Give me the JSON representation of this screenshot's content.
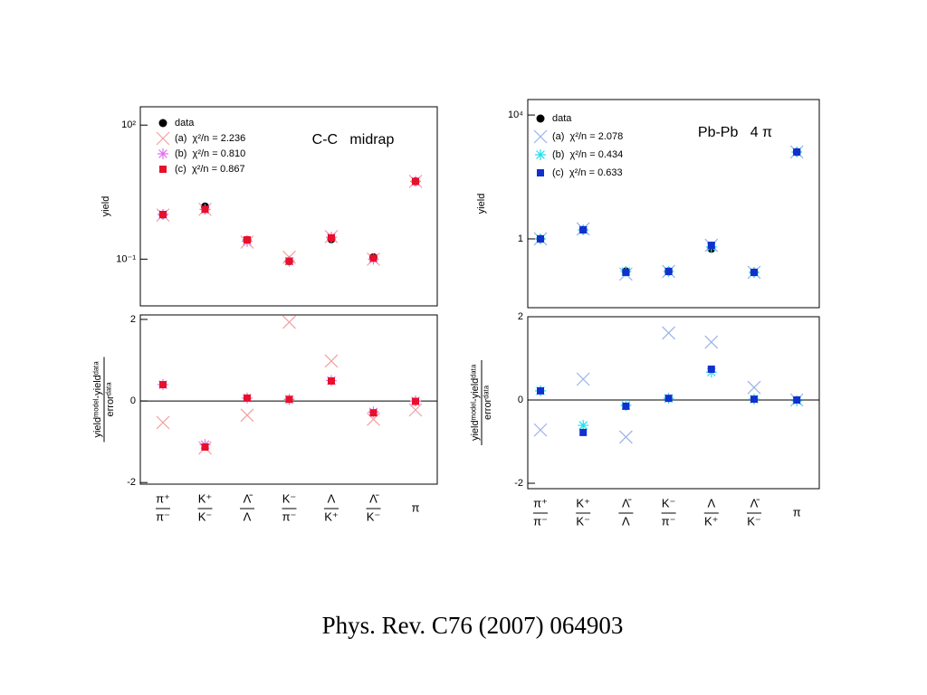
{
  "chart_data": [
    {
      "type": "scatter",
      "log_scale": true,
      "ylabel": "yield",
      "annotation": "C-C   midrap",
      "legend": "upper left",
      "ylim": [
        0.009,
        257
      ],
      "yticks": [
        {
          "value": 0.1,
          "label": "10⁻¹"
        },
        {
          "value": 100,
          "label": "10²"
        }
      ],
      "series": [
        {
          "name": "data",
          "marker": "circle",
          "color": "#000000",
          "values": [
            0.99,
            1.5,
            0.27,
            0.09,
            0.28,
            0.11,
            5.5
          ],
          "errors": [
            0.05,
            0.1,
            0.04,
            0.01,
            0.03,
            0.02,
            0.3
          ]
        },
        {
          "name": "(a)  χ²/n = 2.236",
          "marker": "x",
          "color": "#f4a0a0",
          "values": [
            0.97,
            1.3,
            0.24,
            0.11,
            0.32,
            0.1,
            5.5
          ]
        },
        {
          "name": "(b)  χ²/n = 0.810",
          "marker": "star",
          "color": "#e070f0",
          "values": [
            1.0,
            1.3,
            0.25,
            0.09,
            0.31,
            0.1,
            5.5
          ]
        },
        {
          "name": "(c)  χ²/n = 0.867",
          "marker": "square",
          "color": "#e8102a",
          "values": [
            1.0,
            1.3,
            0.27,
            0.09,
            0.3,
            0.105,
            5.5
          ]
        }
      ]
    },
    {
      "type": "scatter",
      "log_scale": true,
      "ylabel": "yield",
      "annotation": "Pb-Pb   4 π",
      "legend": "upper left",
      "ylim": [
        0.006,
        31600
      ],
      "yticks": [
        1,
        {
          "value": 10000,
          "label": "10⁴"
        }
      ],
      "series": [
        {
          "name": "data",
          "marker": "circle",
          "color": "#000000",
          "values": [
            1.0,
            1.96,
            0.089,
            0.089,
            0.48,
            0.083,
            640
          ],
          "errors": [
            0.04,
            0.1,
            0.005,
            0.005,
            0.04,
            0.005,
            30
          ]
        },
        {
          "name": "(a)  χ²/n = 2.078",
          "marker": "x",
          "color": "#9ab0e8",
          "values": [
            1.0,
            2.1,
            0.073,
            0.089,
            0.62,
            0.083,
            640
          ]
        },
        {
          "name": "(b)  χ²/n = 0.434",
          "marker": "star",
          "color": "#20e0f0",
          "values": [
            1.0,
            1.96,
            0.089,
            0.089,
            0.55,
            0.083,
            640
          ]
        },
        {
          "name": "(c)  χ²/n = 0.633",
          "marker": "square",
          "color": "#1030d0",
          "values": [
            1.0,
            1.96,
            0.083,
            0.089,
            0.62,
            0.083,
            640
          ]
        }
      ]
    },
    {
      "type": "scatter",
      "zero_line": true,
      "ylabel": {
        "numerator": "yieldᵐᵒᵈᵉˡ-yieldᵈᵃᵗᵃ",
        "denominator": "errorᵈᵃᵗᵃ"
      },
      "categories": [
        [
          "π⁺",
          "π⁻"
        ],
        [
          "K⁺",
          "K⁻"
        ],
        [
          "Λ̄",
          "Λ"
        ],
        [
          "K⁻",
          "π⁻"
        ],
        [
          "Λ",
          "K⁺"
        ],
        [
          "Λ̄",
          "K⁻"
        ],
        [
          "π"
        ]
      ],
      "ylim": [
        -2.04,
        2.11
      ],
      "yticks": [
        -2,
        0,
        2
      ],
      "series": [
        {
          "marker": "x",
          "color": "#f4a0a0",
          "values": [
            -0.53,
            -1.15,
            -0.35,
            1.93,
            0.98,
            -0.45,
            -0.22
          ]
        },
        {
          "marker": "star",
          "color": "#e070f0",
          "values": [
            0.4,
            -1.07,
            0.07,
            0.04,
            0.5,
            -0.27,
            0
          ]
        },
        {
          "marker": "square",
          "color": "#e8102a",
          "values": [
            0.4,
            -1.13,
            0.07,
            0.04,
            0.49,
            -0.29,
            -0.01
          ]
        }
      ]
    },
    {
      "type": "scatter",
      "zero_line": true,
      "ylabel": {
        "numerator": "yieldᵐᵒᵈᵉˡ-yieldᵈᵃᵗᵃ",
        "denominator": "errorᵈᵃᵗᵃ"
      },
      "categories": [
        [
          "π⁺",
          "π⁻"
        ],
        [
          "K⁺",
          "K⁻"
        ],
        [
          "Λ̄",
          "Λ"
        ],
        [
          "K⁻",
          "π⁻"
        ],
        [
          "Λ",
          "K⁺"
        ],
        [
          "Λ̄",
          "K⁻"
        ],
        [
          "π"
        ]
      ],
      "ylim": [
        -2.13,
        2.0
      ],
      "yticks": [
        -2,
        0,
        2
      ],
      "series": [
        {
          "marker": "x",
          "color": "#9ab0e8",
          "values": [
            -0.72,
            0.5,
            -0.89,
            1.61,
            1.39,
            0.3,
            0
          ]
        },
        {
          "marker": "star",
          "color": "#20e0f0",
          "values": [
            0.22,
            -0.61,
            -0.13,
            0.04,
            0.67,
            0.02,
            -0.02
          ]
        },
        {
          "marker": "square",
          "color": "#1030d0",
          "values": [
            0.22,
            -0.78,
            -0.15,
            0.04,
            0.74,
            0.02,
            0
          ]
        }
      ]
    }
  ],
  "caption": "Phys. Rev. C76 (2007) 064903"
}
